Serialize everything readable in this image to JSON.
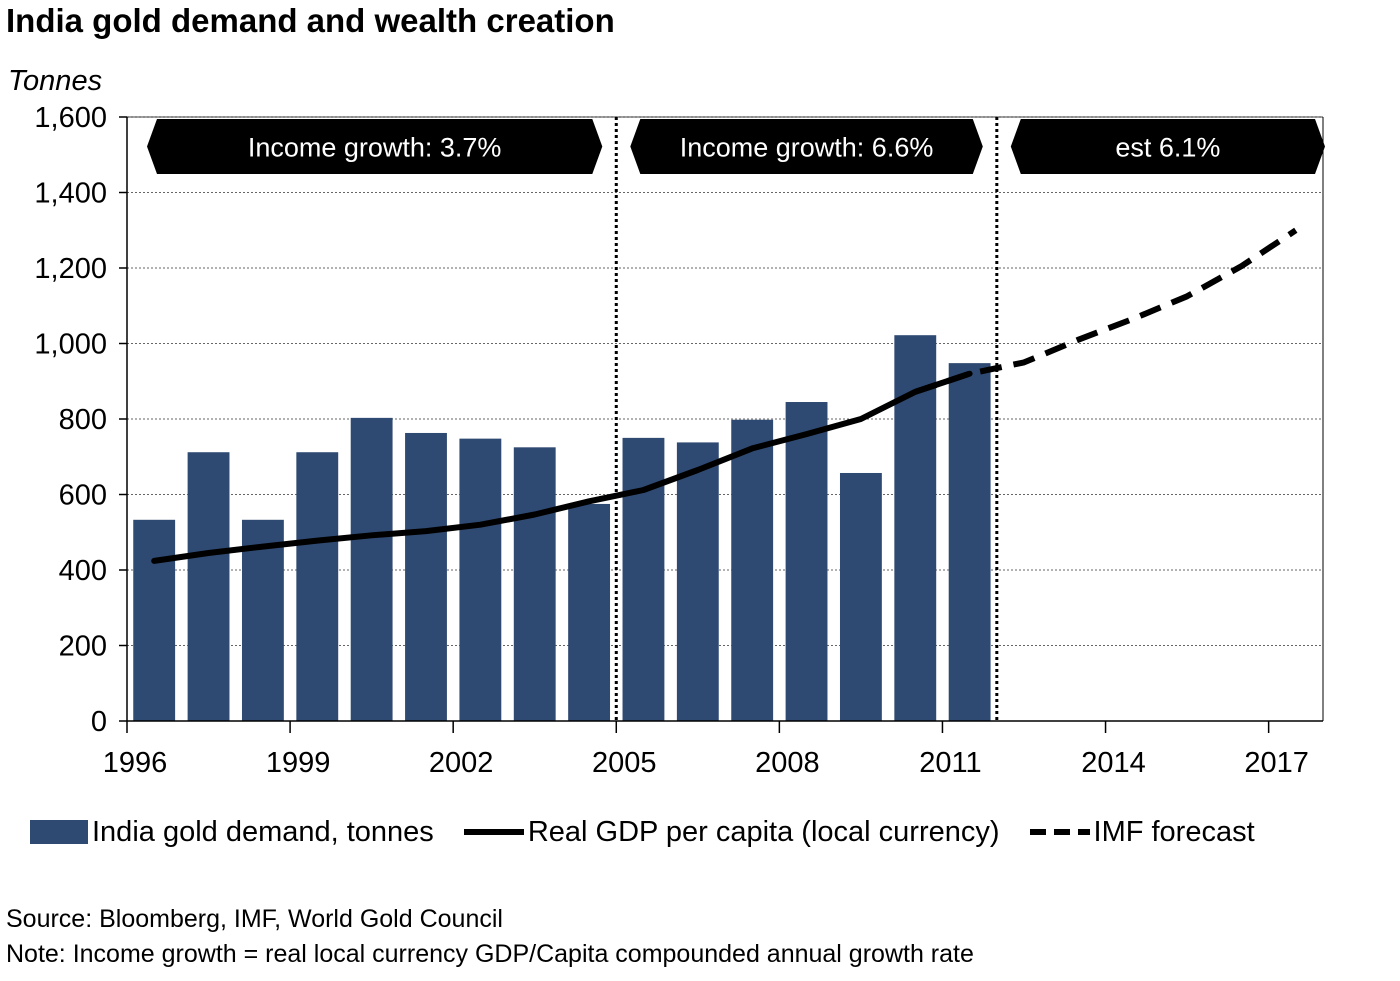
{
  "chart_data": {
    "type": "bar",
    "title": "India gold demand and wealth creation",
    "ylabel": "Tonnes",
    "ylim": [
      0,
      1600
    ],
    "yticks": [
      0,
      200,
      400,
      600,
      800,
      1000,
      1200,
      1400,
      1600
    ],
    "ytick_labels": [
      "0",
      "200",
      "400",
      "600",
      "800",
      "1,000",
      "1,200",
      "1,400",
      "1,600"
    ],
    "xlim": [
      1996,
      2018
    ],
    "xtick_labels": [
      "1996",
      "1999",
      "2002",
      "2005",
      "2008",
      "2011",
      "2014",
      "2017"
    ],
    "grid": true,
    "legend_position": "bottom",
    "series": [
      {
        "name": "India gold demand, tonnes",
        "type": "bar",
        "color": "#2f4a72",
        "x": [
          1996,
          1997,
          1998,
          1999,
          2000,
          2001,
          2002,
          2003,
          2004,
          2005,
          2006,
          2007,
          2008,
          2009,
          2010,
          2011
        ],
        "values": [
          533,
          712,
          533,
          712,
          803,
          763,
          748,
          725,
          575,
          750,
          738,
          798,
          845,
          657,
          1022,
          948
        ]
      },
      {
        "name": "Real GDP per capita (local currency)",
        "type": "line",
        "color": "#000000",
        "x": [
          1996,
          1997,
          1998,
          1999,
          2000,
          2001,
          2002,
          2003,
          2004,
          2005,
          2006,
          2007,
          2008,
          2009,
          2010,
          2011
        ],
        "values": [
          424,
          445,
          462,
          478,
          492,
          503,
          520,
          547,
          582,
          612,
          665,
          722,
          760,
          800,
          872,
          920
        ]
      },
      {
        "name": "IMF forecast",
        "type": "line",
        "style": "dashed",
        "color": "#000000",
        "x": [
          2010,
          2011,
          2012,
          2013,
          2014,
          2015,
          2016,
          2017
        ],
        "values": [
          872,
          920,
          950,
          1010,
          1065,
          1125,
          1205,
          1300
        ]
      }
    ],
    "period_dividers": [
      2005,
      2012
    ],
    "annotations": [
      {
        "text": "Income growth: 3.7%",
        "from": 1996,
        "to": 2005
      },
      {
        "text": "Income growth: 6.6%",
        "from": 2005,
        "to": 2012
      },
      {
        "text": "est 6.1%",
        "from": 2012,
        "to": 2018
      }
    ]
  },
  "footer": {
    "source": "Source: Bloomberg, IMF, World Gold Council",
    "note": "Note: Income growth = real local currency GDP/Capita compounded annual growth rate"
  }
}
